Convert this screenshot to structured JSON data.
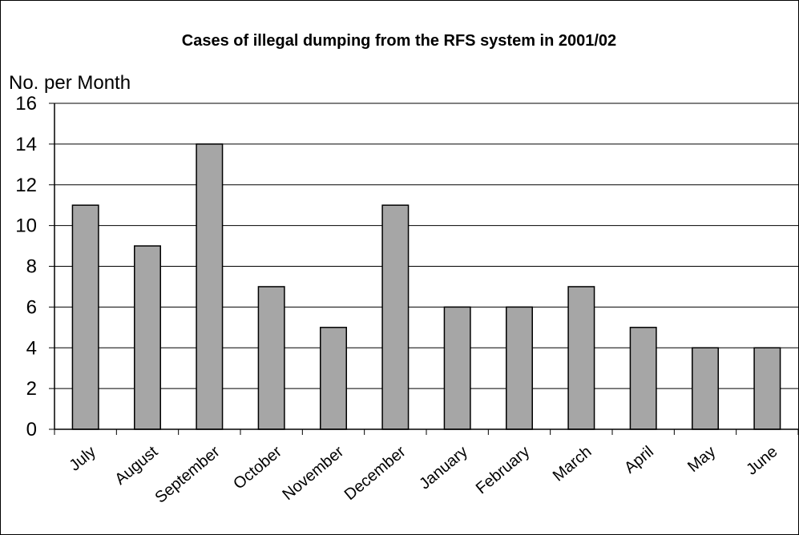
{
  "chart_data": {
    "type": "bar",
    "title": "Cases of illegal dumping from the RFS system in 2001/02",
    "xlabel": "",
    "ylabel": "No. per Month",
    "categories": [
      "July",
      "August",
      "September",
      "October",
      "November",
      "December",
      "January",
      "February",
      "March",
      "April",
      "May",
      "June"
    ],
    "values": [
      11,
      9,
      14,
      7,
      5,
      11,
      6,
      6,
      7,
      5,
      4,
      4
    ],
    "ylim": [
      0,
      16
    ],
    "yticks": [
      0,
      2,
      4,
      6,
      8,
      10,
      12,
      14,
      16
    ],
    "grid": true,
    "legend": "none",
    "colors": {
      "bar_fill": "#a6a6a6",
      "bar_stroke": "#000000",
      "grid": "#000000",
      "background": "#ffffff"
    }
  }
}
